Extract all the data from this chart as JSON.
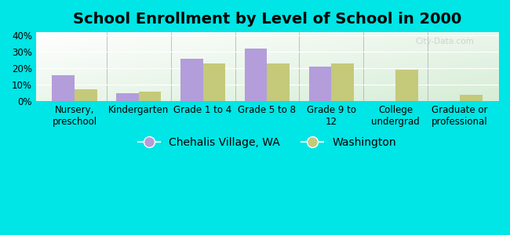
{
  "title": "School Enrollment by Level of School in 2000",
  "categories": [
    "Nursery,\npreschool",
    "Kindergarten",
    "Grade 1 to 4",
    "Grade 5 to 8",
    "Grade 9 to\n12",
    "College\nundergrad",
    "Graduate or\nprofessional"
  ],
  "chehalis": [
    16.0,
    5.0,
    26.0,
    32.0,
    21.0,
    0.0,
    0.0
  ],
  "washington": [
    7.0,
    6.0,
    23.0,
    23.0,
    23.0,
    19.0,
    4.0
  ],
  "chehalis_color": "#b39ddb",
  "washington_color": "#c5c97a",
  "background_color": "#00e5e5",
  "yticks": [
    0,
    10,
    20,
    30,
    40
  ],
  "ytick_labels": [
    "0%",
    "10%",
    "20%",
    "30%",
    "40%"
  ],
  "ylim": [
    0,
    42
  ],
  "legend_chehalis": "Chehalis Village, WA",
  "legend_washington": "Washington",
  "title_fontsize": 14,
  "tick_fontsize": 8.5,
  "legend_fontsize": 10,
  "bar_width": 0.35
}
